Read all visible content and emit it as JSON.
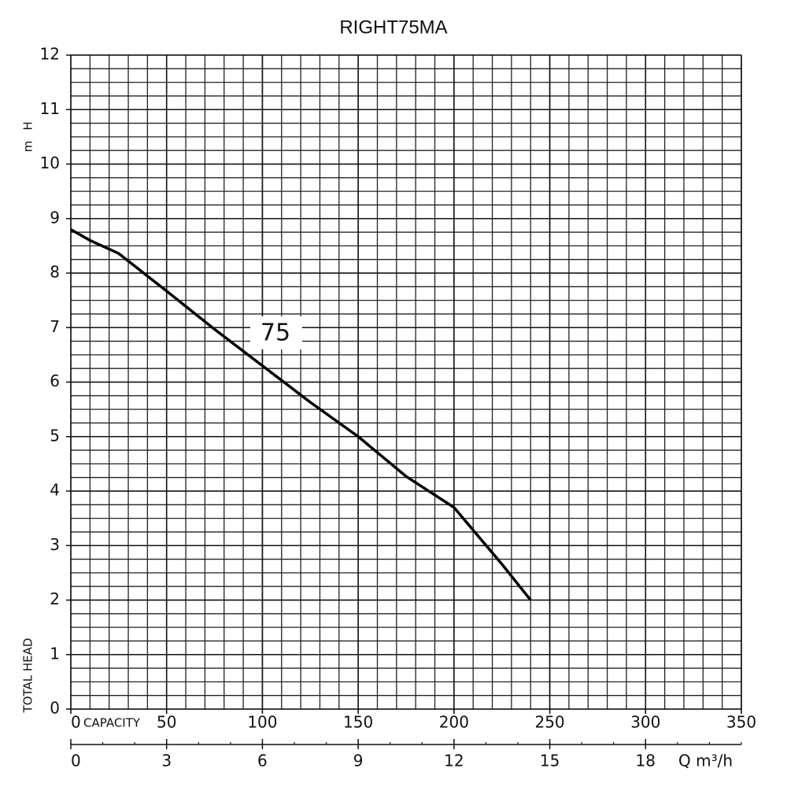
{
  "chart_data": {
    "type": "line",
    "title": "RIGHT75MA",
    "y_label": "H",
    "y_unit": "m",
    "y_caption": "TOTAL HEAD",
    "x_label": "CAPACITY",
    "x2_label": "Q m³/h",
    "x": [
      0,
      10,
      25,
      50,
      75,
      100,
      125,
      150,
      175,
      200,
      212,
      225,
      240
    ],
    "series": [
      {
        "name": "75",
        "color": "#000000",
        "values": [
          8.8,
          8.6,
          8.36,
          7.67,
          6.97,
          6.3,
          5.63,
          5.0,
          4.27,
          3.7,
          3.2,
          2.66,
          2.0
        ]
      }
    ],
    "xlim": [
      0,
      350
    ],
    "xticks": [
      0,
      50,
      100,
      150,
      200,
      250,
      300,
      350
    ],
    "x2lim": [
      0,
      21
    ],
    "x2ticks": [
      0,
      3,
      6,
      9,
      12,
      15,
      18
    ],
    "x2minor_step": 1,
    "ylim": [
      0,
      12
    ],
    "yticks": [
      0,
      1,
      2,
      3,
      4,
      5,
      6,
      7,
      8,
      9,
      10,
      11,
      12
    ],
    "grid": true,
    "xminor_step": 10,
    "yminor_step": 0.25
  }
}
